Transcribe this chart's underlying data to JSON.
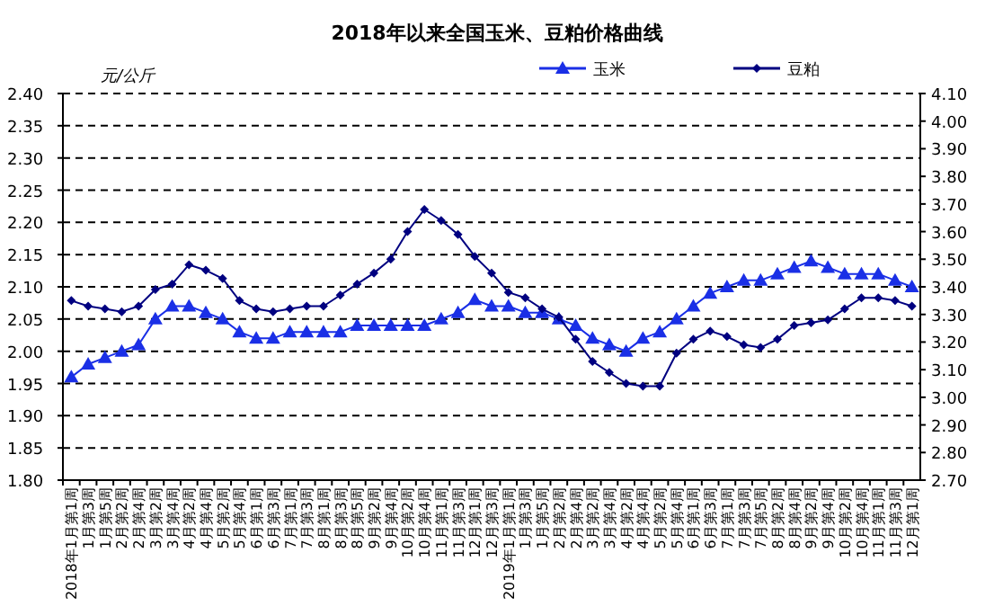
{
  "chart_data": {
    "type": "line",
    "title": "2018年以来全国玉米、豆粕价格曲线",
    "ylabel": "元/公斤",
    "categories": [
      "2018年1月第1周",
      "1月第3周",
      "1月第5周",
      "2月第2周",
      "2月第4周",
      "3月第2周",
      "3月第4周",
      "4月第2周",
      "4月第4周",
      "5月第2周",
      "5月第4周",
      "6月第1周",
      "6月第3周",
      "7月第1周",
      "7月第3周",
      "8月第1周",
      "8月第3周",
      "8月第5周",
      "9月第2周",
      "9月第4周",
      "10月第2周",
      "10月第4周",
      "11月第1周",
      "11月第3周",
      "12月第1周",
      "12月第3周",
      "2019年1月第1周",
      "1月第3周",
      "1月第5周",
      "2月第2周",
      "2月第4周",
      "3月第2周",
      "3月第4周",
      "4月第2周",
      "4月第4周",
      "5月第2周",
      "5月第4周",
      "6月第1周",
      "6月第3周",
      "7月第1周",
      "7月第3周",
      "7月第5周",
      "8月第2周",
      "8月第4周",
      "9月第2周",
      "9月第4周",
      "10月第2周",
      "10月第4周",
      "11月第1周",
      "11月第3周",
      "12月第1周"
    ],
    "series": [
      {
        "name": "玉米",
        "color": "#1a2fe6",
        "marker": "triangle",
        "values": [
          1.96,
          1.98,
          1.99,
          2.0,
          2.01,
          2.05,
          2.07,
          2.07,
          2.06,
          2.05,
          2.03,
          2.02,
          2.02,
          2.03,
          2.03,
          2.03,
          2.03,
          2.04,
          2.04,
          2.04,
          2.04,
          2.04,
          2.05,
          2.06,
          2.08,
          2.07,
          2.07,
          2.06,
          2.06,
          2.05,
          2.04,
          2.02,
          2.01,
          2.0,
          2.02,
          2.03,
          2.05,
          2.07,
          2.09,
          2.1,
          2.11,
          2.11,
          2.12,
          2.13,
          2.14,
          2.13,
          2.12,
          2.12,
          2.12,
          2.11,
          2.1
        ]
      },
      {
        "name": "豆粕",
        "color": "#000080",
        "marker": "diamond",
        "axis": "y2",
        "values": [
          3.35,
          3.33,
          3.32,
          3.31,
          3.33,
          3.39,
          3.41,
          3.48,
          3.46,
          3.43,
          3.35,
          3.32,
          3.31,
          3.32,
          3.33,
          3.33,
          3.37,
          3.41,
          3.45,
          3.5,
          3.6,
          3.68,
          3.64,
          3.59,
          3.51,
          3.45,
          3.38,
          3.36,
          3.32,
          3.29,
          3.21,
          3.13,
          3.09,
          3.05,
          3.04,
          3.04,
          3.16,
          3.21,
          3.24,
          3.22,
          3.19,
          3.18,
          3.21,
          3.26,
          3.27,
          3.28,
          3.32,
          3.36,
          3.36,
          3.35,
          3.33
        ]
      }
    ],
    "ylim": [
      1.8,
      2.4
    ],
    "yticks": [
      {
        "value": 1.8,
        "label": "1.80"
      },
      {
        "value": 1.85,
        "label": "1.85"
      },
      {
        "value": 1.9,
        "label": "1.90"
      },
      {
        "value": 1.95,
        "label": "1.95"
      },
      {
        "value": 2.0,
        "label": "2.00"
      },
      {
        "value": 2.05,
        "label": "2.05"
      },
      {
        "value": 2.1,
        "label": "2.10"
      },
      {
        "value": 2.15,
        "label": "2.15"
      },
      {
        "value": 2.2,
        "label": "2.20"
      },
      {
        "value": 2.25,
        "label": "2.25"
      },
      {
        "value": 2.3,
        "label": "2.30"
      },
      {
        "value": 2.35,
        "label": "2.35"
      },
      {
        "value": 2.4,
        "label": "2.40"
      }
    ],
    "y2lim": [
      2.7,
      4.1
    ],
    "y2ticks": [
      {
        "value": 2.7,
        "label": "2.70"
      },
      {
        "value": 2.8,
        "label": "2.80"
      },
      {
        "value": 2.9,
        "label": "2.90"
      },
      {
        "value": 3.0,
        "label": "3.00"
      },
      {
        "value": 3.1,
        "label": "3.10"
      },
      {
        "value": 3.2,
        "label": "3.20"
      },
      {
        "value": 3.3,
        "label": "3.30"
      },
      {
        "value": 3.4,
        "label": "3.40"
      },
      {
        "value": 3.5,
        "label": "3.50"
      },
      {
        "value": 3.6,
        "label": "3.60"
      },
      {
        "value": 3.7,
        "label": "3.70"
      },
      {
        "value": 3.8,
        "label": "3.80"
      },
      {
        "value": 3.9,
        "label": "3.90"
      },
      {
        "value": 4.0,
        "label": "4.00"
      },
      {
        "value": 4.1,
        "label": "4.10"
      }
    ],
    "grid": "y",
    "legend": "top"
  }
}
